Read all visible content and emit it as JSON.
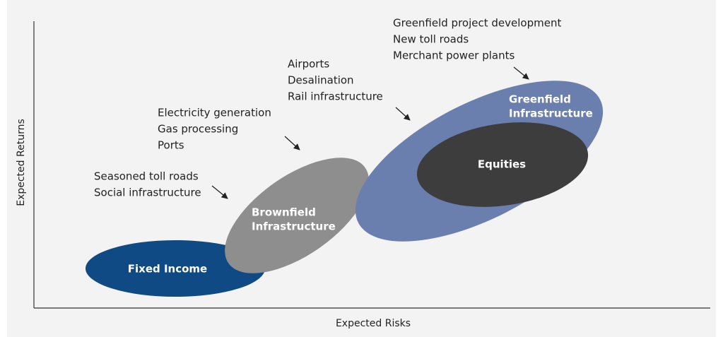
{
  "axes": {
    "y_label": "Expected Returns",
    "x_label": "Expected Risks"
  },
  "nodes": [
    {
      "lines": [
        "Fixed Income"
      ]
    },
    {
      "lines": [
        "Brownfield",
        "Infrastructure"
      ]
    },
    {
      "lines": [
        "Greenfield",
        "Infrastructure"
      ]
    },
    {
      "lines": [
        "Equities"
      ]
    }
  ],
  "annotations": [
    {
      "lines": [
        "Seasoned toll roads",
        "Social infrastructure"
      ]
    },
    {
      "lines": [
        "Electricity generation",
        "Gas processing",
        "Ports"
      ]
    },
    {
      "lines": [
        "Airports",
        "Desalination",
        "Rail infrastructure"
      ]
    },
    {
      "lines": [
        "Greenfield project development",
        "New toll roads",
        "Merchant power plants"
      ]
    }
  ]
}
